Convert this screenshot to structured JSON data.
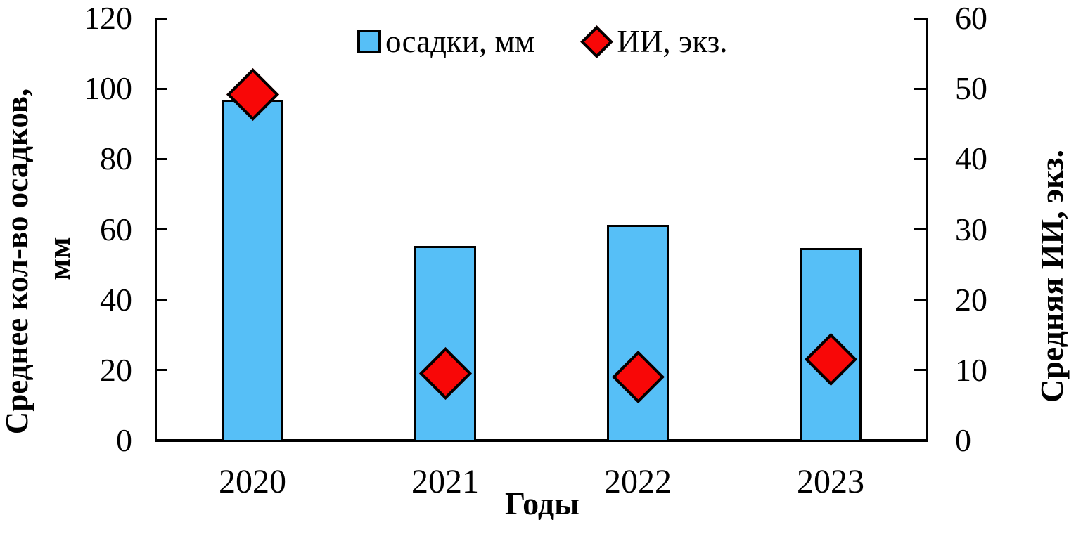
{
  "chart_data": {
    "type": "bar",
    "subtype": "combo-bar-and-diamond-scatter-dual-axis",
    "categories": [
      "2020",
      "2021",
      "2022",
      "2023"
    ],
    "series": [
      {
        "name": "осадки, мм",
        "type": "bar",
        "axis": "left",
        "values": [
          96.8,
          55.4,
          61.2,
          54.7
        ],
        "color": "#56bff7"
      },
      {
        "name": "ИИ, экз.",
        "type": "scatter",
        "marker": "diamond",
        "axis": "right",
        "values": [
          49.2,
          9.5,
          9.0,
          11.5
        ],
        "color": "#f80707"
      }
    ],
    "left_axis": {
      "label_line1": "Среднее кол-во осадков,",
      "label_line2": "мм",
      "min": 0,
      "max": 120,
      "tick_step": 20,
      "ticks": [
        0,
        20,
        40,
        60,
        80,
        100,
        120
      ]
    },
    "right_axis": {
      "label": "Средняя ИИ, экз.",
      "min": 0,
      "max": 60,
      "tick_step": 10,
      "ticks": [
        0,
        10,
        20,
        30,
        40,
        50,
        60
      ]
    },
    "x_axis": {
      "label": "Годы"
    },
    "legend": [
      {
        "label": "осадки, мм",
        "marker": "square",
        "color": "#56bff7"
      },
      {
        "label": "ИИ, экз.",
        "marker": "diamond",
        "color": "#f80707"
      }
    ],
    "grid": false,
    "legend_position": "top-center",
    "axis_color": "#000000"
  }
}
